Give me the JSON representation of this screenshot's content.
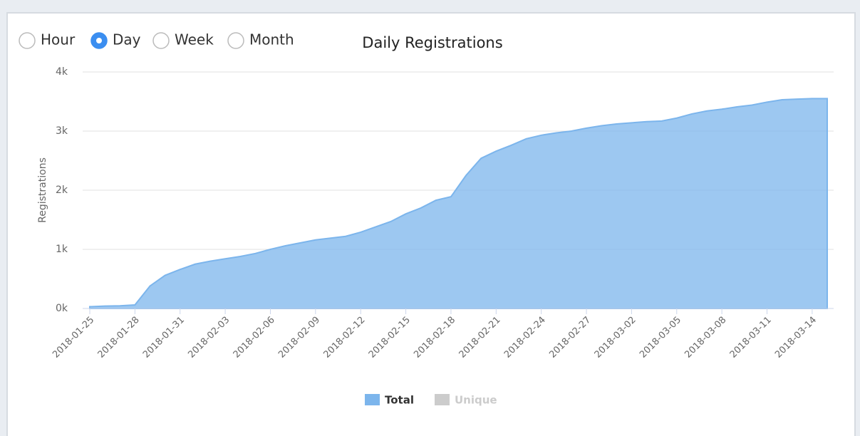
{
  "controls": {
    "options": [
      "Hour",
      "Day",
      "Week",
      "Month"
    ],
    "selected": 1
  },
  "chart_data": {
    "type": "area",
    "title": "Daily Registrations",
    "y_label": "Registrations",
    "categories": [
      "2018-01-25",
      null,
      null,
      "2018-01-28",
      null,
      null,
      "2018-01-31",
      null,
      null,
      "2018-02-03",
      null,
      null,
      "2018-02-06",
      null,
      null,
      "2018-02-09",
      null,
      null,
      "2018-02-12",
      null,
      null,
      "2018-02-15",
      null,
      null,
      "2018-02-18",
      null,
      null,
      "2018-02-21",
      null,
      null,
      "2018-02-24",
      null,
      null,
      "2018-02-27",
      null,
      null,
      "2018-03-02",
      null,
      null,
      "2018-03-05",
      null,
      null,
      "2018-03-08",
      null,
      null,
      "2018-03-11",
      null,
      null,
      "2018-03-14",
      null
    ],
    "series": [
      {
        "name": "Total",
        "color": "#7cb5ec",
        "values": [
          30,
          40,
          45,
          60,
          380,
          560,
          660,
          750,
          800,
          840,
          880,
          930,
          1000,
          1060,
          1110,
          1160,
          1190,
          1220,
          1290,
          1380,
          1470,
          1600,
          1700,
          1830,
          1890,
          2250,
          2540,
          2660,
          2760,
          2870,
          2930,
          2970,
          3000,
          3050,
          3090,
          3120,
          3140,
          3160,
          3170,
          3220,
          3290,
          3340,
          3370,
          3410,
          3440,
          3490,
          3530,
          3540,
          3550,
          3550
        ]
      }
    ],
    "legend": [
      {
        "name": "Total",
        "color": "#7cb5ec",
        "hidden": false
      },
      {
        "name": "Unique",
        "color": "#cccccc",
        "hidden": true
      }
    ],
    "ylim": [
      0,
      4000
    ],
    "yticks": [
      {
        "value": 0,
        "label": "0k"
      },
      {
        "value": 1000,
        "label": "1k"
      },
      {
        "value": 2000,
        "label": "2k"
      },
      {
        "value": 3000,
        "label": "3k"
      },
      {
        "value": 4000,
        "label": "4k"
      }
    ],
    "grid": true
  }
}
